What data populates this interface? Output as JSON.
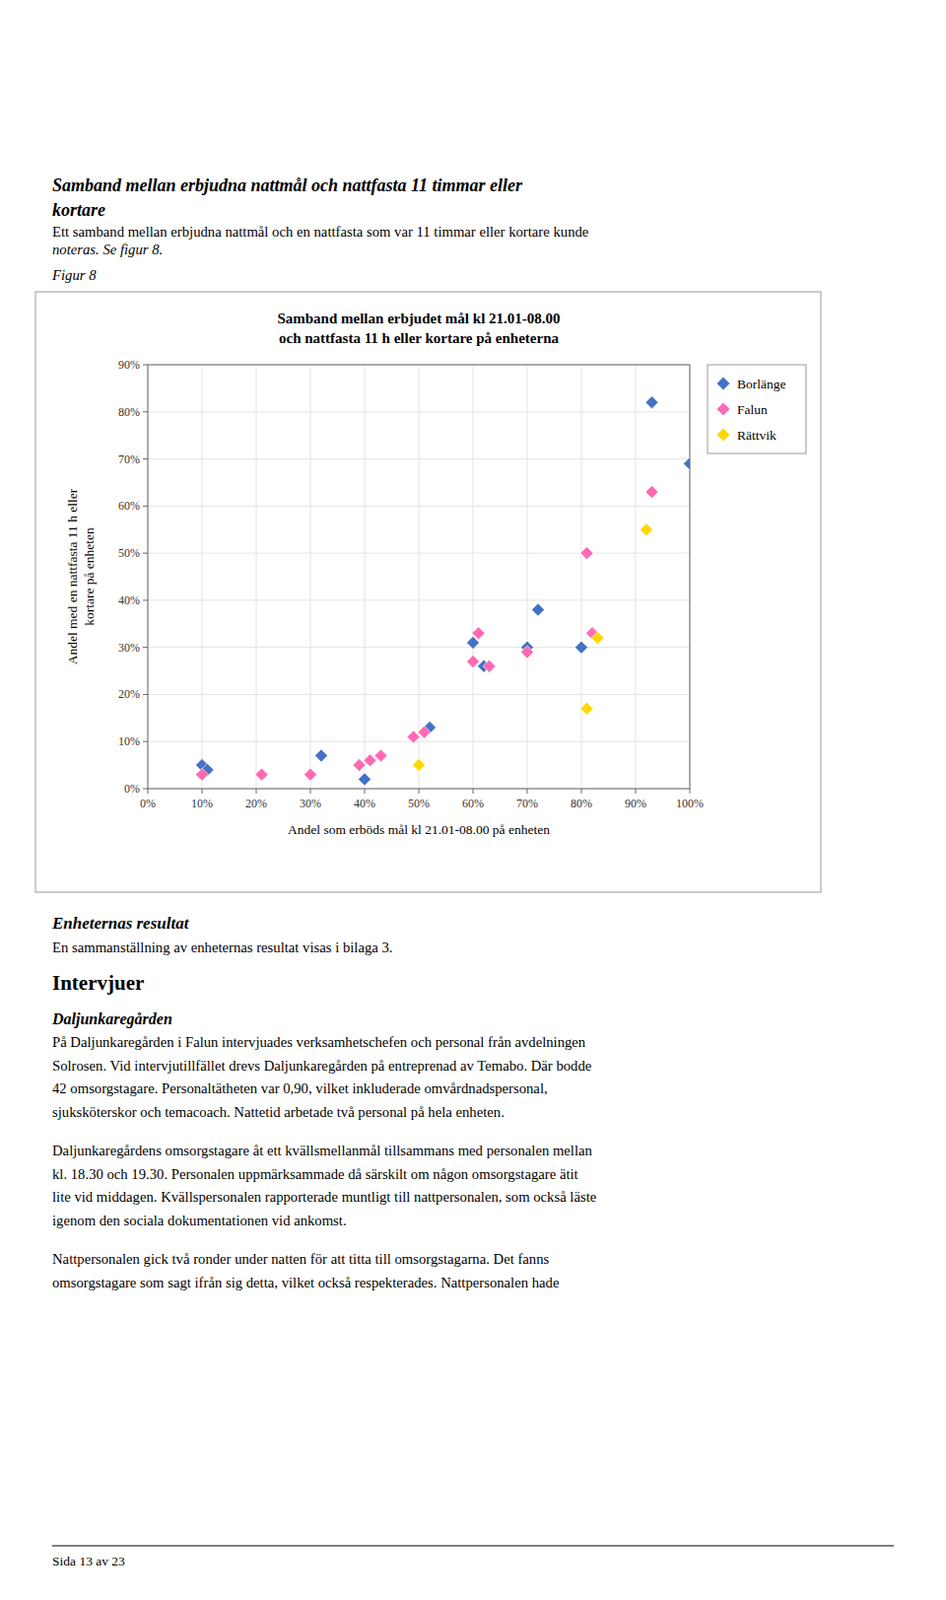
{
  "page_title": [
    "Samband mellan erbjudna nattmål och nattfasta 11 timmar eller",
    "kortare"
  ],
  "page_subtitle": [
    "Ett samband mellan erbjudna nattmål och en nattfasta som var 11 timmar eller kortare kunde",
    "noteras. Se figur 8."
  ],
  "figure_label": "Figur 8",
  "chart_data": {
    "type": "scatter",
    "title": "Samband mellan erbjudet mål kl 21.01-08.00\noch nattfasta 11 h eller kortare på enheterna",
    "x_label": "Andel som erböds mål kl 21.01-08.00 på enheten",
    "y_label": "Andel med en nattfasta 11 h eller\nkortare på enheten",
    "marker": "diamond",
    "grid": true,
    "legend": "right",
    "series": [
      {
        "name": "Borlänge",
        "color": "#4472C4",
        "x": [
          0.1,
          0.11,
          0.32,
          0.4,
          0.52,
          0.6,
          0.62,
          0.7,
          0.72,
          0.8,
          0.93,
          1.0
        ],
        "values": [
          0.05,
          0.04,
          0.07,
          0.02,
          0.13,
          0.31,
          0.26,
          0.3,
          0.38,
          0.3,
          0.82,
          0.69
        ]
      },
      {
        "name": "Falun",
        "color": "#FF69B4",
        "x": [
          0.1,
          0.21,
          0.3,
          0.39,
          0.41,
          0.43,
          0.49,
          0.51,
          0.6,
          0.61,
          0.63,
          0.7,
          0.81,
          0.82,
          0.93
        ],
        "values": [
          0.03,
          0.03,
          0.03,
          0.05,
          0.06,
          0.07,
          0.11,
          0.12,
          0.27,
          0.33,
          0.26,
          0.29,
          0.5,
          0.33,
          0.63
        ]
      },
      {
        "name": "Rättvik",
        "color": "#FFD700",
        "x": [
          0.5,
          0.81,
          0.83,
          0.92
        ],
        "values": [
          0.05,
          0.17,
          0.32,
          0.55
        ]
      }
    ],
    "xlim": [
      0.0,
      1.0
    ],
    "ylim": [
      0.0,
      0.9
    ],
    "xticks": [
      {
        "value": 0.0,
        "label": "0%"
      },
      {
        "value": 0.1,
        "label": "10%"
      },
      {
        "value": 0.2,
        "label": "20%"
      },
      {
        "value": 0.3,
        "label": "30%"
      },
      {
        "value": 0.4,
        "label": "40%"
      },
      {
        "value": 0.5,
        "label": "50%"
      },
      {
        "value": 0.6,
        "label": "60%"
      },
      {
        "value": 0.7,
        "label": "70%"
      },
      {
        "value": 0.8,
        "label": "80%"
      },
      {
        "value": 0.9,
        "label": "90%"
      },
      {
        "value": 1.0,
        "label": "100%"
      }
    ],
    "yticks": [
      {
        "value": 0.0,
        "label": "0%"
      },
      {
        "value": 0.1,
        "label": "10%"
      },
      {
        "value": 0.2,
        "label": "20%"
      },
      {
        "value": 0.3,
        "label": "30%"
      },
      {
        "value": 0.4,
        "label": "40%"
      },
      {
        "value": 0.5,
        "label": "50%"
      },
      {
        "value": 0.6,
        "label": "60%"
      },
      {
        "value": 0.7,
        "label": "70%"
      },
      {
        "value": 0.8,
        "label": "80%"
      },
      {
        "value": 0.9,
        "label": "90%"
      }
    ]
  },
  "section_title1": "Enheternas resultat",
  "section_body1": "En sammanställning av enheternas resultat visas i bilaga 3.",
  "section_title2": "Intervjuer",
  "section_title3": "Daljunkaregården",
  "section_body3": [
    "På Daljunkaregården i Falun intervjuades verksamhetschefen och personal från avdelningen",
    "Solrosen. Vid intervjutillfället drevs Daljunkaregården på entreprenad av Temabo. Där bodde",
    "42 omsorgstagare. Personaltätheten var 0,90, vilket inkluderade omvårdnadspersonal,",
    "sjuksköterskor och temacoach. Nattetid arbetade två personal på hela enheten."
  ],
  "section_body4": [
    "Daljunkaregårdens omsorgstagare åt ett kvällsmellanmål tillsammans med personalen mellan",
    "kl. 18.30 och 19.30. Personalen uppmärksammade då särskilt om någon omsorgstagare ätit",
    "lite vid middagen. Kvällspersonalen rapporterade muntligt till nattpersonalen, som också läste",
    "igenom den sociala dokumentationen vid ankomst."
  ],
  "section_body5": [
    "Nattpersonalen gick två ronder under natten för att titta till omsorgstagarna. Det fanns",
    "omsorgstagare som sagt ifrån sig detta, vilket också respekterades. Nattpersonalen hade"
  ],
  "page_number": "Sida 13 av 23"
}
